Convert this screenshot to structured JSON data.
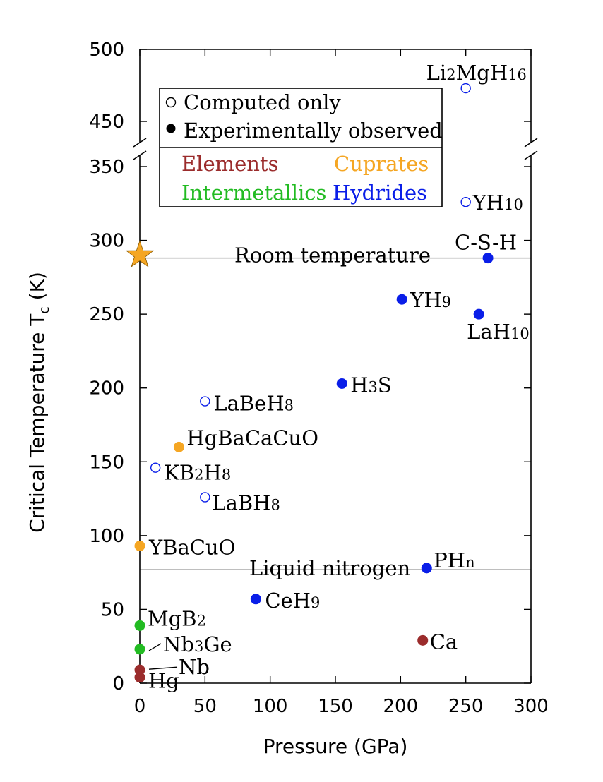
{
  "chart_data": {
    "type": "scatter",
    "xlabel": "Pressure (GPa)",
    "ylabel_main": "Critical Temperature T",
    "ylabel_sub": "c",
    "ylabel_unit": " (K)",
    "xlim": [
      0,
      300
    ],
    "ylim_lower": [
      0,
      360
    ],
    "ylim_upper": [
      440,
      500
    ],
    "x_ticks": [
      {
        "v": 0,
        "label": "0"
      },
      {
        "v": 50,
        "label": "50"
      },
      {
        "v": 100,
        "label": "100"
      },
      {
        "v": 150,
        "label": "150"
      },
      {
        "v": 200,
        "label": "200"
      },
      {
        "v": 250,
        "label": "250"
      },
      {
        "v": 300,
        "label": "300"
      }
    ],
    "y_ticks_lower": [
      {
        "v": 0,
        "label": "0"
      },
      {
        "v": 50,
        "label": "50"
      },
      {
        "v": 100,
        "label": "100"
      },
      {
        "v": 150,
        "label": "150"
      },
      {
        "v": 200,
        "label": "200"
      },
      {
        "v": 250,
        "label": "250"
      },
      {
        "v": 300,
        "label": "300"
      },
      {
        "v": 350,
        "label": "350"
      }
    ],
    "y_ticks_upper": [
      {
        "v": 450,
        "label": "450"
      },
      {
        "v": 500,
        "label": "500"
      }
    ],
    "reference_lines": [
      {
        "name": "Room temperature",
        "y": 288
      },
      {
        "name": "Liquid nitrogen",
        "y": 77
      }
    ],
    "categories": [
      {
        "name": "Elements",
        "color": "#9b2c2c"
      },
      {
        "name": "Cuprates",
        "color": "#f5a623"
      },
      {
        "name": "Intermetallics",
        "color": "#22bb22"
      },
      {
        "name": "Hydrides",
        "color": "#0a1ee8"
      }
    ],
    "legend": {
      "computed": "Computed only",
      "experimental": "Experimentally observed",
      "elements": "Elements",
      "cuprates": "Cuprates",
      "intermetallics": "Intermetallics",
      "hydrides": "Hydrides"
    },
    "star_marker": {
      "x": 0,
      "y": 290,
      "color": "#f5a623"
    },
    "points": [
      {
        "label": "Li2MgH16",
        "main": "Li",
        "parts": [
          [
            "Li",
            ""
          ],
          [
            "2",
            "sub"
          ],
          [
            "MgH",
            ""
          ],
          [
            "16",
            "sub"
          ]
        ],
        "x": 250,
        "y": 473,
        "category": "Hydrides",
        "observed": false
      },
      {
        "label": "YH10",
        "parts": [
          [
            "YH",
            ""
          ],
          [
            "10",
            "sub"
          ]
        ],
        "x": 250,
        "y": 326,
        "category": "Hydrides",
        "observed": false
      },
      {
        "label": "C-S-H",
        "parts": [
          [
            "C-S-H",
            ""
          ]
        ],
        "x": 267,
        "y": 288,
        "category": "Hydrides",
        "observed": true
      },
      {
        "label": "YH9",
        "parts": [
          [
            "YH",
            ""
          ],
          [
            "9",
            "sub"
          ]
        ],
        "x": 201,
        "y": 260,
        "category": "Hydrides",
        "observed": true
      },
      {
        "label": "LaH10",
        "parts": [
          [
            "LaH",
            ""
          ],
          [
            "10",
            "sub"
          ]
        ],
        "x": 260,
        "y": 250,
        "category": "Hydrides",
        "observed": true
      },
      {
        "label": "H3S",
        "parts": [
          [
            "H",
            ""
          ],
          [
            "3",
            "sub"
          ],
          [
            "S",
            ""
          ]
        ],
        "x": 155,
        "y": 203,
        "category": "Hydrides",
        "observed": true
      },
      {
        "label": "LaBeH8",
        "parts": [
          [
            "LaBeH",
            ""
          ],
          [
            "8",
            "sub"
          ]
        ],
        "x": 50,
        "y": 191,
        "category": "Hydrides",
        "observed": false
      },
      {
        "label": "HgBaCaCuO",
        "parts": [
          [
            "HgBaCaCuO",
            ""
          ]
        ],
        "x": 30,
        "y": 160,
        "category": "Cuprates",
        "observed": true
      },
      {
        "label": "KB2H8",
        "parts": [
          [
            "KB",
            ""
          ],
          [
            "2",
            "sub"
          ],
          [
            "H",
            ""
          ],
          [
            "8",
            "sub"
          ]
        ],
        "x": 12,
        "y": 146,
        "category": "Hydrides",
        "observed": false
      },
      {
        "label": "LaBH8",
        "parts": [
          [
            "LaBH",
            ""
          ],
          [
            "8",
            "sub"
          ]
        ],
        "x": 50,
        "y": 126,
        "category": "Hydrides",
        "observed": false
      },
      {
        "label": "YBaCuO",
        "parts": [
          [
            "YBaCuO",
            ""
          ]
        ],
        "x": 0,
        "y": 93,
        "category": "Cuprates",
        "observed": true
      },
      {
        "label": "PHn",
        "parts": [
          [
            "PH",
            ""
          ],
          [
            "n",
            "sub"
          ]
        ],
        "x": 220,
        "y": 78,
        "category": "Hydrides",
        "observed": true
      },
      {
        "label": "CeH9",
        "parts": [
          [
            "CeH",
            ""
          ],
          [
            "9",
            "sub"
          ]
        ],
        "x": 89,
        "y": 57,
        "category": "Hydrides",
        "observed": true
      },
      {
        "label": "MgB2",
        "parts": [
          [
            "MgB",
            ""
          ],
          [
            "2",
            "sub"
          ]
        ],
        "x": 0,
        "y": 39,
        "category": "Intermetallics",
        "observed": true
      },
      {
        "label": "Nb3Ge",
        "parts": [
          [
            "Nb",
            ""
          ],
          [
            "3",
            "sub"
          ],
          [
            "Ge",
            ""
          ]
        ],
        "x": 0,
        "y": 23,
        "category": "Intermetallics",
        "observed": true
      },
      {
        "label": "Ca",
        "parts": [
          [
            "Ca",
            ""
          ]
        ],
        "x": 217,
        "y": 29,
        "category": "Elements",
        "observed": true
      },
      {
        "label": "Nb",
        "parts": [
          [
            "Nb",
            ""
          ]
        ],
        "x": 0,
        "y": 9,
        "category": "Elements",
        "observed": true
      },
      {
        "label": "Hg",
        "parts": [
          [
            "Hg",
            ""
          ]
        ],
        "x": 0,
        "y": 4,
        "category": "Elements",
        "observed": true
      }
    ]
  }
}
